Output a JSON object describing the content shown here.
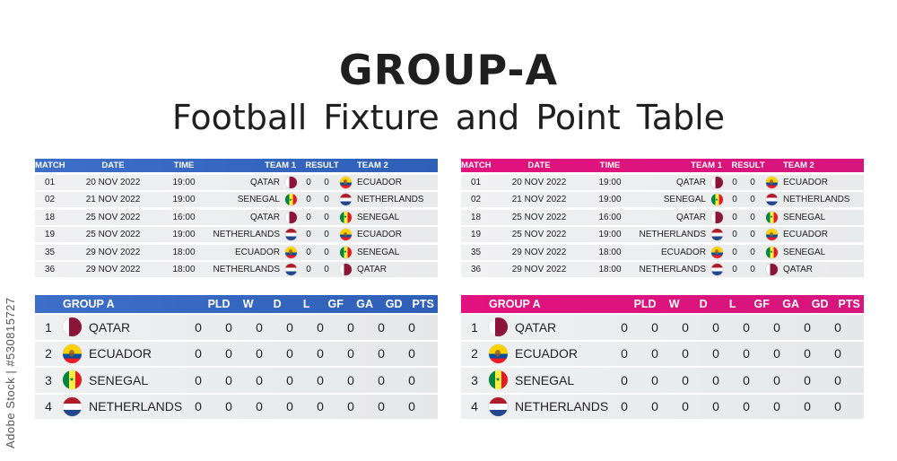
{
  "title": "GROUP-A",
  "subtitle": "Football Fixture  and  Point  Table",
  "watermark": "Adobe Stock | #530815727",
  "colors": {
    "blue_header": "#2f5fb7",
    "pink_header": "#e2127e",
    "row_bg": "#eceeef"
  },
  "fixture": {
    "headers": {
      "match": "MATCH",
      "date": "DATE",
      "time": "TIME",
      "team1": "TEAM 1",
      "result": "RESULT",
      "team2": "TEAM 2"
    },
    "rows": [
      {
        "match": "01",
        "date": "20 NOV 2022",
        "time": "19:00",
        "team1": "QATAR",
        "flag1": "qatar",
        "score1": "0",
        "score2": "0",
        "flag2": "ecuador",
        "team2": "ECUADOR"
      },
      {
        "match": "02",
        "date": "21 NOV 2022",
        "time": "19:00",
        "team1": "SENEGAL",
        "flag1": "senegal",
        "score1": "0",
        "score2": "0",
        "flag2": "netherlands",
        "team2": "NETHERLANDS"
      },
      {
        "match": "18",
        "date": "25 NOV 2022",
        "time": "16:00",
        "team1": "QATAR",
        "flag1": "qatar",
        "score1": "0",
        "score2": "0",
        "flag2": "senegal",
        "team2": "SENEGAL"
      },
      {
        "match": "19",
        "date": "25 NOV 2022",
        "time": "19:00",
        "team1": "NETHERLANDS",
        "flag1": "netherlands",
        "score1": "0",
        "score2": "0",
        "flag2": "ecuador",
        "team2": "ECUADOR"
      },
      {
        "match": "35",
        "date": "29 NOV 2022",
        "time": "18:00",
        "team1": "ECUADOR",
        "flag1": "ecuador",
        "score1": "0",
        "score2": "0",
        "flag2": "senegal",
        "team2": "SENEGAL"
      },
      {
        "match": "36",
        "date": "29 NOV 2022",
        "time": "18:00",
        "team1": "NETHERLANDS",
        "flag1": "netherlands",
        "score1": "0",
        "score2": "0",
        "flag2": "qatar",
        "team2": "QATAR"
      }
    ]
  },
  "standings": {
    "headers": {
      "group": "GROUP A",
      "pld": "PLD",
      "w": "W",
      "d": "D",
      "l": "L",
      "gf": "GF",
      "ga": "GA",
      "gd": "GD",
      "pts": "PTS"
    },
    "rows": [
      {
        "pos": "1",
        "flag": "qatar",
        "team": "QATAR",
        "pld": "0",
        "w": "0",
        "d": "0",
        "l": "0",
        "gf": "0",
        "ga": "0",
        "gd": "0",
        "pts": "0"
      },
      {
        "pos": "2",
        "flag": "ecuador",
        "team": "ECUADOR",
        "pld": "0",
        "w": "0",
        "d": "0",
        "l": "0",
        "gf": "0",
        "ga": "0",
        "gd": "0",
        "pts": "0"
      },
      {
        "pos": "3",
        "flag": "senegal",
        "team": "SENEGAL",
        "pld": "0",
        "w": "0",
        "d": "0",
        "l": "0",
        "gf": "0",
        "ga": "0",
        "gd": "0",
        "pts": "0"
      },
      {
        "pos": "4",
        "flag": "netherlands",
        "team": "NETHERLANDS",
        "pld": "0",
        "w": "0",
        "d": "0",
        "l": "0",
        "gf": "0",
        "ga": "0",
        "gd": "0",
        "pts": "0"
      }
    ]
  }
}
